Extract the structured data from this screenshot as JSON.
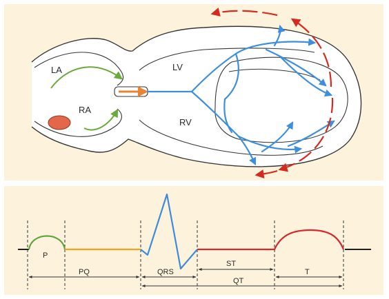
{
  "heart": {
    "chambers": {
      "la": "LA",
      "ra": "RA",
      "lv": "LV",
      "rv": "RV"
    }
  },
  "ecg": {
    "waves": {
      "p": "P",
      "t": "T"
    },
    "intervals": {
      "pq": "PQ",
      "qrs": "QRS",
      "st": "ST",
      "qt": "QT"
    }
  },
  "colors": {
    "panel_bg": "#fdf3dc",
    "heart_fill": "#ffffff",
    "heart_outline": "#353535",
    "conduction": "#3e8ede",
    "activation_arrow": "#d62a20",
    "atrial_arrow": "#6aaa3a",
    "av_arrow": "#e98530",
    "sa_node": "#e3674a",
    "ecg_baseline": "#202020",
    "ecg_p_wave": "#61a33d",
    "ecg_pq": "#efa323",
    "ecg_qrs": "#3d8bd9",
    "ecg_st_t": "#d8262e",
    "guide_lines": "#333333"
  }
}
